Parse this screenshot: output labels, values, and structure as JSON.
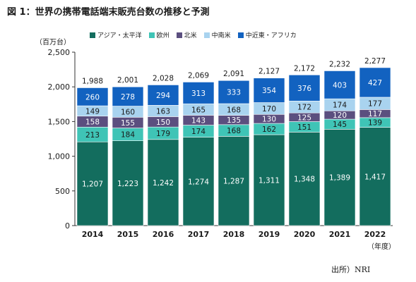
{
  "header": {
    "title": "図 1：世界の携帯電話端末販売台数の推移と予測",
    "unit": "（百万台）",
    "xunit": "（年度）",
    "source": "出所）NRI"
  },
  "chart_data": {
    "type": "bar",
    "stacked": true,
    "categories": [
      "2014",
      "2015",
      "2016",
      "2017",
      "2018",
      "2019",
      "2020",
      "2021",
      "2022"
    ],
    "series": [
      {
        "name": "アジア・太平洋",
        "color": "#136d5e",
        "values": [
          1207,
          1223,
          1242,
          1274,
          1287,
          1311,
          1348,
          1389,
          1417
        ]
      },
      {
        "name": "欧州",
        "color": "#3fc4b6",
        "values": [
          213,
          184,
          179,
          174,
          168,
          162,
          151,
          145,
          139
        ]
      },
      {
        "name": "北米",
        "color": "#5b4f7f",
        "values": [
          158,
          155,
          150,
          143,
          135,
          130,
          125,
          120,
          117
        ]
      },
      {
        "name": "中南米",
        "color": "#a9d3ef",
        "values": [
          149,
          160,
          163,
          165,
          168,
          170,
          172,
          174,
          177
        ]
      },
      {
        "name": "中近東・アフリカ",
        "color": "#1262c0",
        "values": [
          260,
          278,
          294,
          313,
          333,
          354,
          376,
          403,
          427
        ]
      }
    ],
    "totals": [
      1988,
      2001,
      2028,
      2069,
      2091,
      2127,
      2172,
      2232,
      2277
    ],
    "yticks": [
      "0",
      "500",
      "1,000",
      "1,500",
      "2,000",
      "2,500"
    ],
    "ylim": [
      0,
      2500
    ],
    "legend_position": "top",
    "grid": false
  }
}
